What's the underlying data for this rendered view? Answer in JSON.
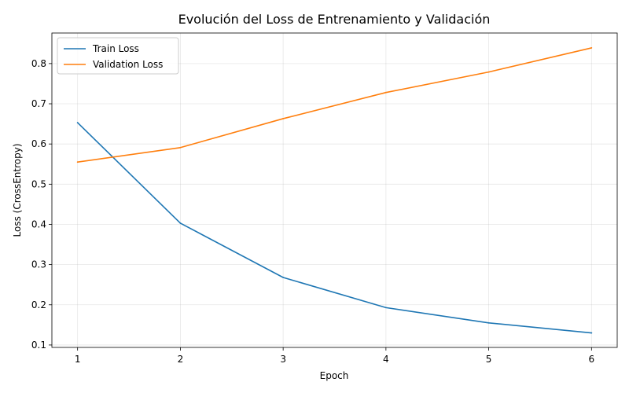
{
  "chart_data": {
    "type": "line",
    "title": "Evolución del Loss de Entrenamiento y Validación",
    "xlabel": "Epoch",
    "ylabel": "Loss (CrossEntropy)",
    "x": [
      1,
      2,
      3,
      4,
      5,
      6
    ],
    "xlim": [
      0.75,
      6.25
    ],
    "ylim": [
      0.094,
      0.876
    ],
    "xticks": [
      1,
      2,
      3,
      4,
      5,
      6
    ],
    "yticks": [
      0.1,
      0.2,
      0.3,
      0.4,
      0.5,
      0.6,
      0.7,
      0.8
    ],
    "grid": true,
    "legend_position": "top-left",
    "series": [
      {
        "name": "Train Loss",
        "color": "#1f77b4",
        "values": [
          0.653,
          0.403,
          0.268,
          0.193,
          0.155,
          0.13
        ]
      },
      {
        "name": "Validation Loss",
        "color": "#ff7f0e",
        "values": [
          0.555,
          0.591,
          0.663,
          0.728,
          0.779,
          0.839
        ]
      }
    ]
  }
}
